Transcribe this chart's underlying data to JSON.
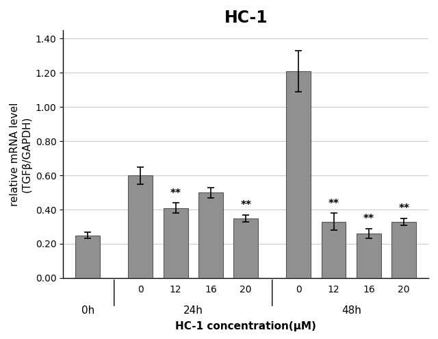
{
  "title": "HC-1",
  "xlabel": "HC-1 concentration(μM)",
  "ylabel": "relative mRNA level\n(TGFβ/GAPDH)",
  "bar_values": [
    0.25,
    0.6,
    0.41,
    0.5,
    0.35,
    1.21,
    0.33,
    0.26,
    0.33
  ],
  "error_values": [
    0.02,
    0.05,
    0.03,
    0.03,
    0.02,
    0.12,
    0.05,
    0.03,
    0.02
  ],
  "bar_color": "#909090",
  "bar_positions": [
    0.5,
    2.0,
    3.0,
    4.0,
    5.0,
    6.5,
    7.5,
    8.5,
    9.5
  ],
  "bar_width": 0.7,
  "tick_labels": [
    "",
    "0",
    "12",
    "16",
    "20",
    "0",
    "12",
    "16",
    "20"
  ],
  "group_labels": [
    "0h",
    "24h",
    "48h"
  ],
  "significance_bars": [
    2,
    4,
    6,
    7,
    8
  ],
  "ylim": [
    0.0,
    1.45
  ],
  "yticks": [
    0.0,
    0.2,
    0.4,
    0.6,
    0.8,
    1.0,
    1.2,
    1.4
  ],
  "title_fontsize": 17,
  "label_fontsize": 11,
  "tick_fontsize": 10,
  "group_label_fontsize": 11,
  "sig_fontsize": 11
}
